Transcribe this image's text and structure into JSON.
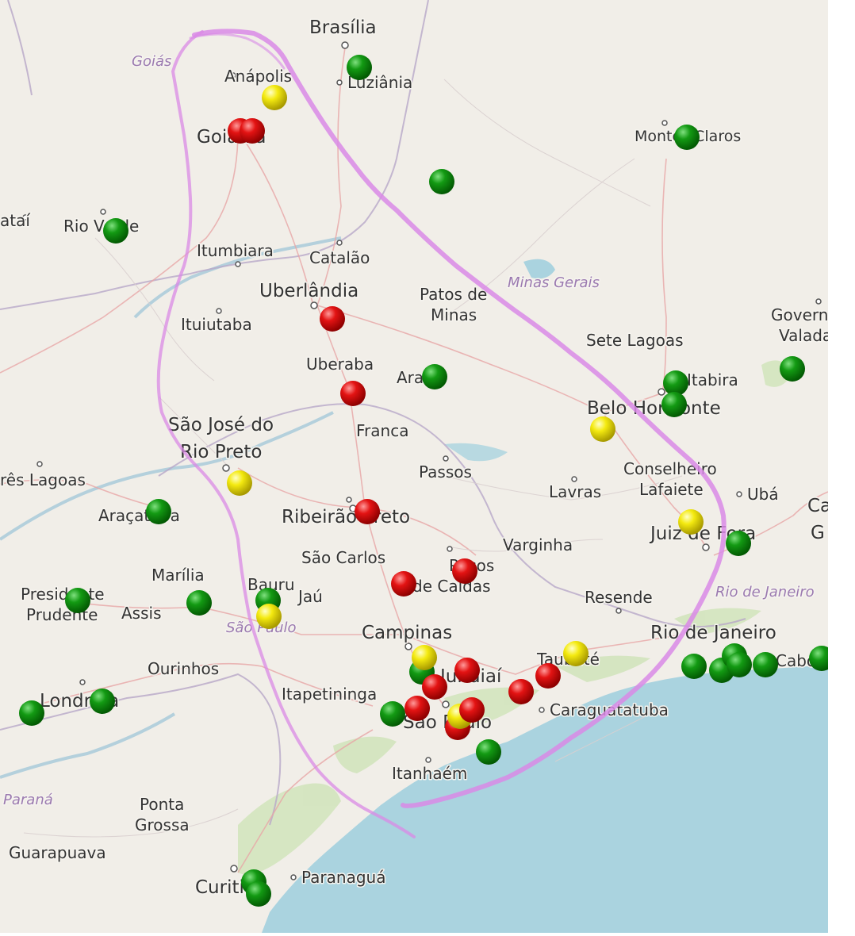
{
  "cities": [
    {
      "name": "Brasília",
      "size": "lg"
    },
    {
      "name": "Luziânia",
      "size": "md"
    },
    {
      "name": "Anápolis",
      "size": "md"
    },
    {
      "name": "Goiânia",
      "size": "lg"
    },
    {
      "name": "Montes Claros",
      "size": "md"
    },
    {
      "name": "ataí",
      "size": "md"
    },
    {
      "name": "Rio Verde",
      "size": "md"
    },
    {
      "name": "Itumbiara",
      "size": "md"
    },
    {
      "name": "Catalão",
      "size": "md"
    },
    {
      "name": "Uberlândia",
      "size": "lg"
    },
    {
      "name": "Patos de",
      "size": "md"
    },
    {
      "name": "Minas",
      "size": "md"
    },
    {
      "name": "Ituiutaba",
      "size": "md"
    },
    {
      "name": "Uberaba",
      "size": "md"
    },
    {
      "name": "Araxá",
      "size": "md"
    },
    {
      "name": "Sete Lagoas",
      "size": "md"
    },
    {
      "name": "Governador",
      "size": "md"
    },
    {
      "name": "Valadares",
      "size": "md"
    },
    {
      "name": "Itabira",
      "size": "md"
    },
    {
      "name": "Belo Horizonte",
      "size": "lg"
    },
    {
      "name": "São José do",
      "size": "lg"
    },
    {
      "name": "Rio Preto",
      "size": "lg"
    },
    {
      "name": "Franca",
      "size": "md"
    },
    {
      "name": "Passos",
      "size": "md"
    },
    {
      "name": "Conselheiro",
      "size": "md"
    },
    {
      "name": "Lafaiete",
      "size": "md"
    },
    {
      "name": "Ubá",
      "size": "md"
    },
    {
      "name": "rês Lagoas",
      "size": "md"
    },
    {
      "name": "Araçatuba",
      "size": "md"
    },
    {
      "name": "Ribeirão Preto",
      "size": "lg"
    },
    {
      "name": "Lavras",
      "size": "md"
    },
    {
      "name": "Juiz de Fora",
      "size": "lg"
    },
    {
      "name": "Varginha",
      "size": "md"
    },
    {
      "name": "São Carlos",
      "size": "md"
    },
    {
      "name": "Poços",
      "size": "md"
    },
    {
      "name": "de Caldas",
      "size": "md"
    },
    {
      "name": "Marília",
      "size": "md"
    },
    {
      "name": "Bauru",
      "size": "md"
    },
    {
      "name": "Jaú",
      "size": "md"
    },
    {
      "name": "Presidente",
      "size": "md"
    },
    {
      "name": "Prudente",
      "size": "md"
    },
    {
      "name": "Assis",
      "size": "md"
    },
    {
      "name": "Resende",
      "size": "md"
    },
    {
      "name": "Campinas",
      "size": "lg"
    },
    {
      "name": "Rio de Janeiro",
      "size": "lg"
    },
    {
      "name": "Ourinhos",
      "size": "md"
    },
    {
      "name": "Taubaté",
      "size": "md"
    },
    {
      "name": "Jundiaí",
      "size": "lg"
    },
    {
      "name": "Cabo",
      "size": "md"
    },
    {
      "name": "Itapetininga",
      "size": "md"
    },
    {
      "name": "Caraguatatuba",
      "size": "md"
    },
    {
      "name": "Londrina",
      "size": "lg"
    },
    {
      "name": "São Paulo",
      "size": "lg"
    },
    {
      "name": "Itanhaém",
      "size": "md"
    },
    {
      "name": "Ponta",
      "size": "md"
    },
    {
      "name": "Grossa",
      "size": "md"
    },
    {
      "name": "Guarapuava",
      "size": "md"
    },
    {
      "name": "Curitiba",
      "size": "lg"
    },
    {
      "name": "Paranaguá",
      "size": "md"
    },
    {
      "name": "Ca",
      "size": "lg"
    },
    {
      "name": "G",
      "size": "lg"
    }
  ],
  "states": [
    "Goiás",
    "Minas Gerais",
    "São Paulo",
    "Rio de Janeiro",
    "Paraná"
  ],
  "marker_colors": {
    "green": "#0a8a0a",
    "red": "#e01010",
    "yellow": "#f2e600"
  },
  "annotation_color": "#d98ae6",
  "water_color": "#aad3df",
  "land_color": "#f1eee8"
}
